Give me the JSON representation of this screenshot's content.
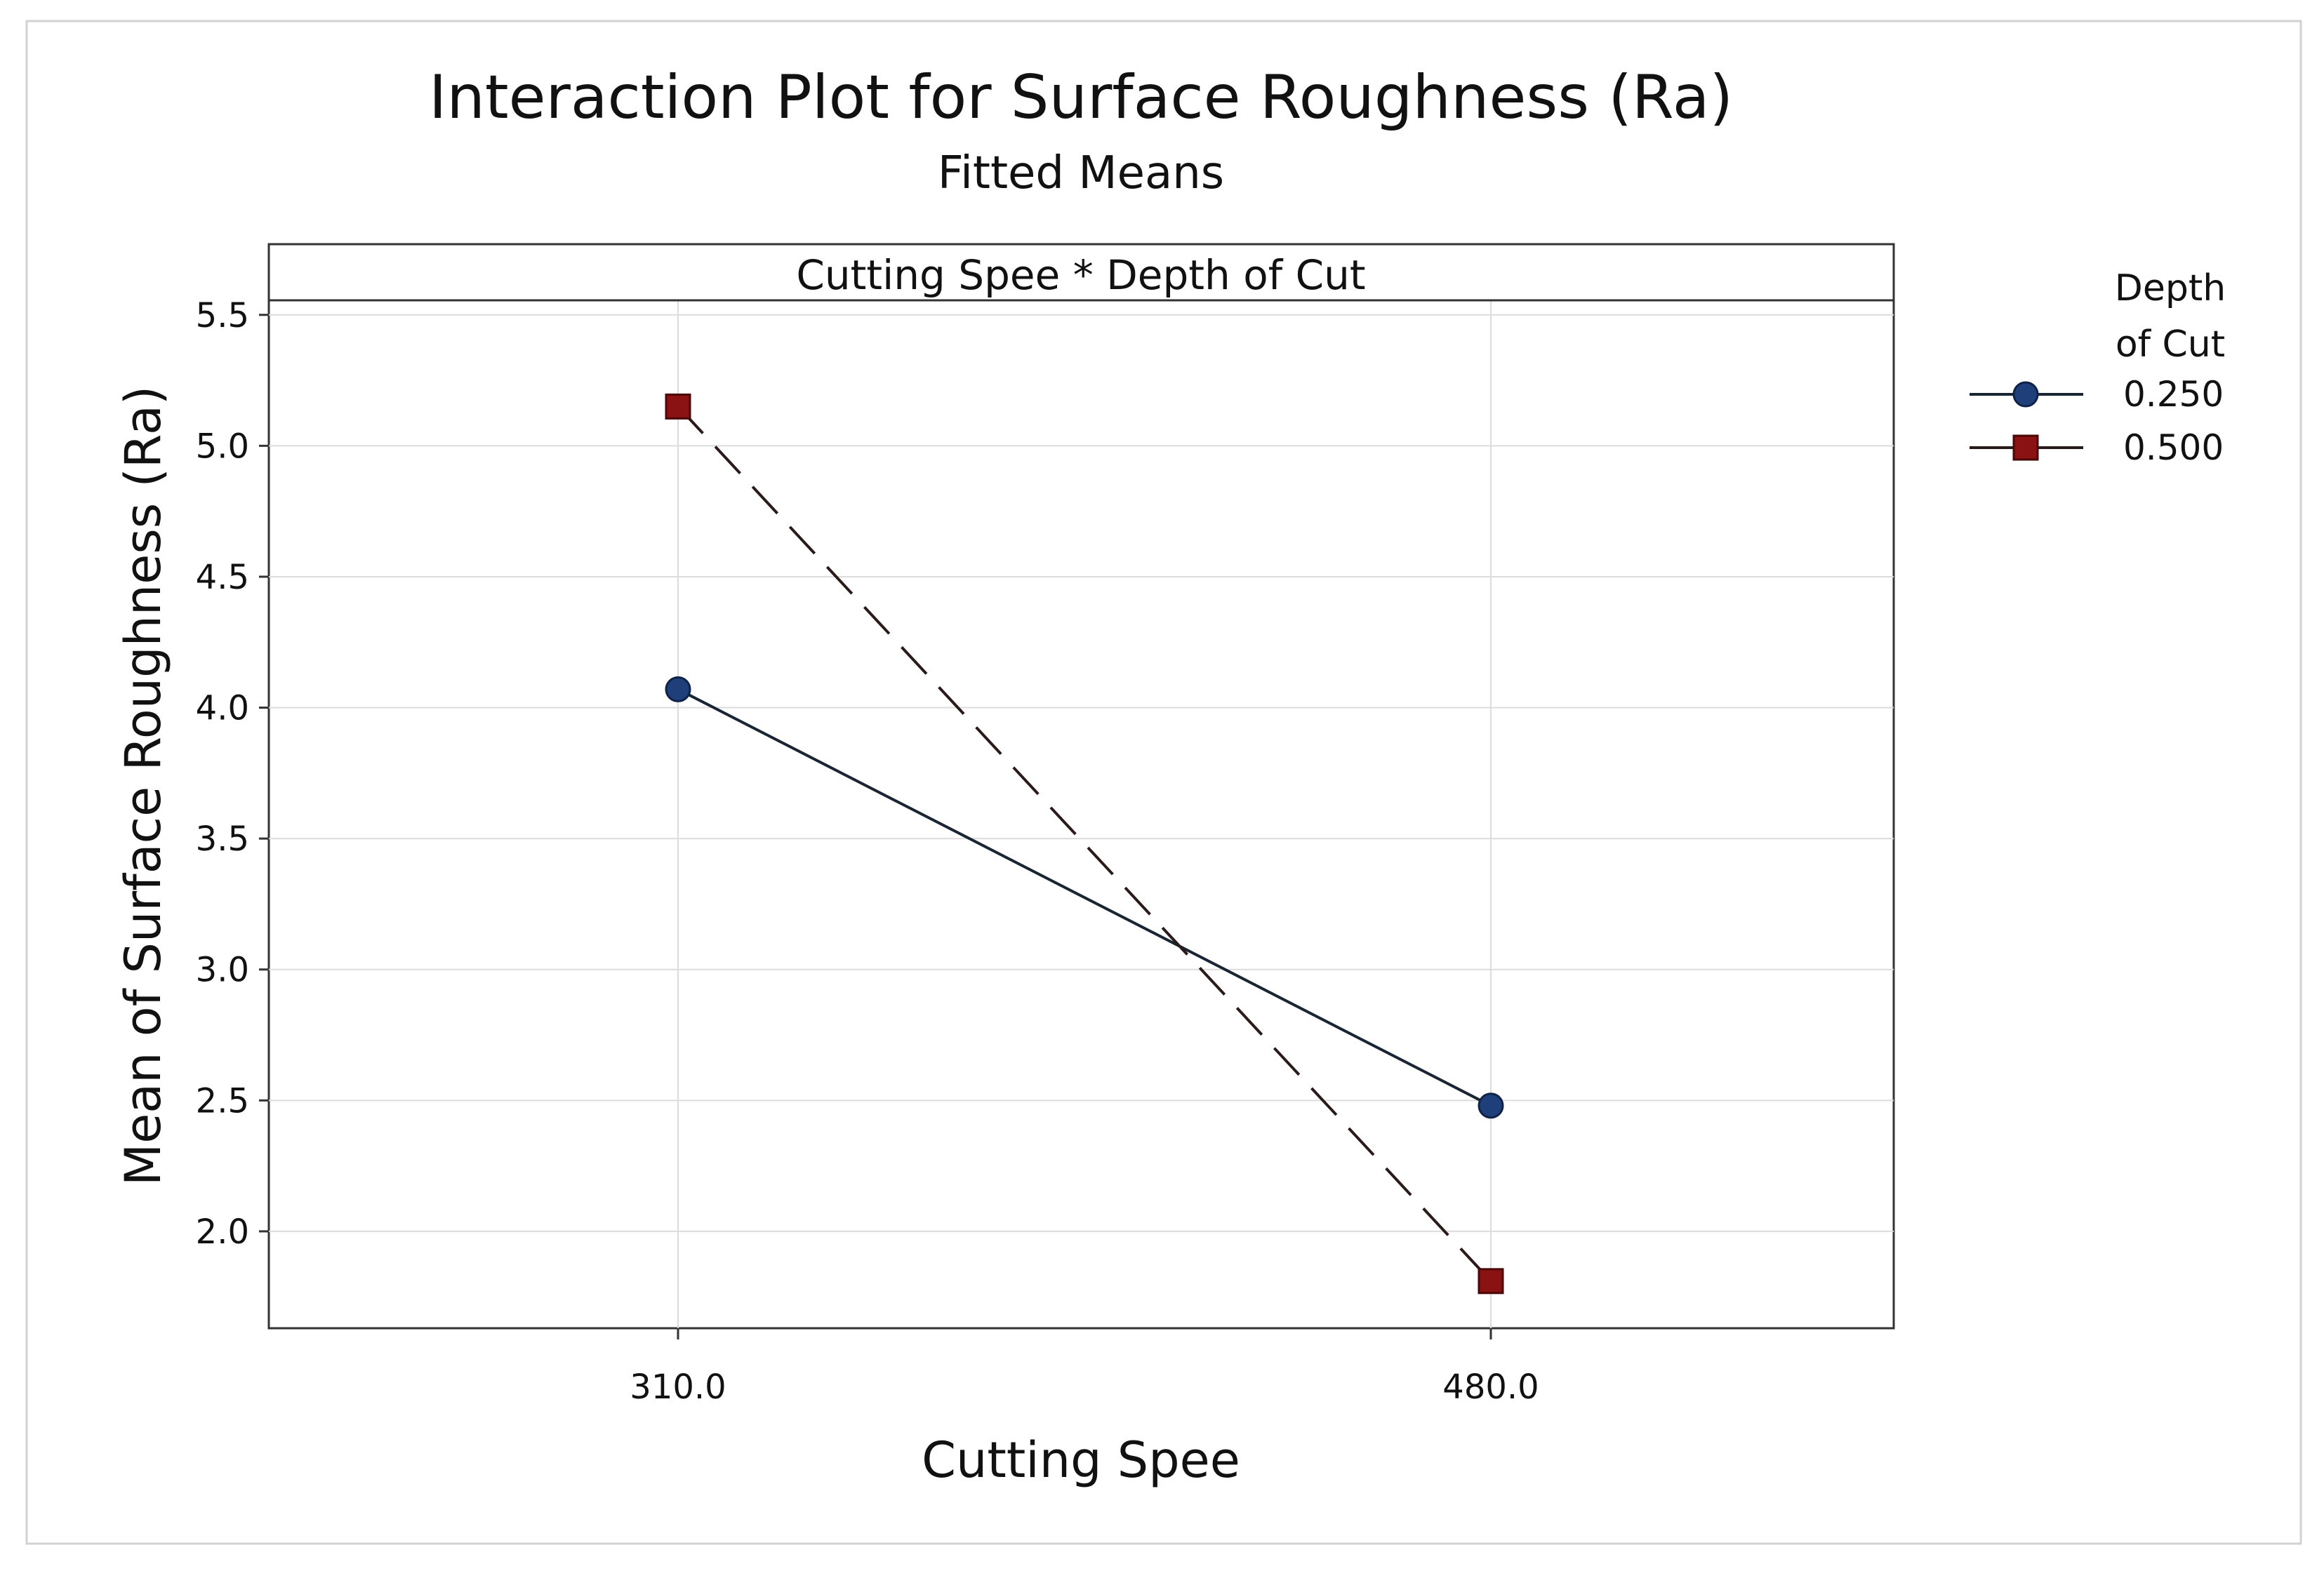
{
  "chart_data": {
    "type": "line",
    "title": "Interaction Plot for Surface Roughness (Ra)",
    "subtitle": "Fitted Means",
    "panel_title": "Cutting Spee * Depth of Cut",
    "xlabel": "Cutting Spee",
    "ylabel": "Mean of Surface Roughness (Ra)",
    "categories": [
      "310.0",
      "480.0"
    ],
    "yticks": [
      "2.0",
      "2.5",
      "3.0",
      "3.5",
      "4.0",
      "4.5",
      "5.0",
      "5.5"
    ],
    "ylim": [
      1.63,
      5.77
    ],
    "grid": true,
    "legend_title_line1": "Depth",
    "legend_title_line2": "of Cut",
    "legend_position": "right",
    "series": [
      {
        "name": "0.250",
        "values": [
          4.07,
          2.48
        ],
        "color": "#1f3f7a",
        "marker": "circle",
        "line": "solid"
      },
      {
        "name": "0.500",
        "values": [
          5.15,
          1.81
        ],
        "color": "#8b1212",
        "marker": "square",
        "line": "dashed"
      }
    ]
  }
}
